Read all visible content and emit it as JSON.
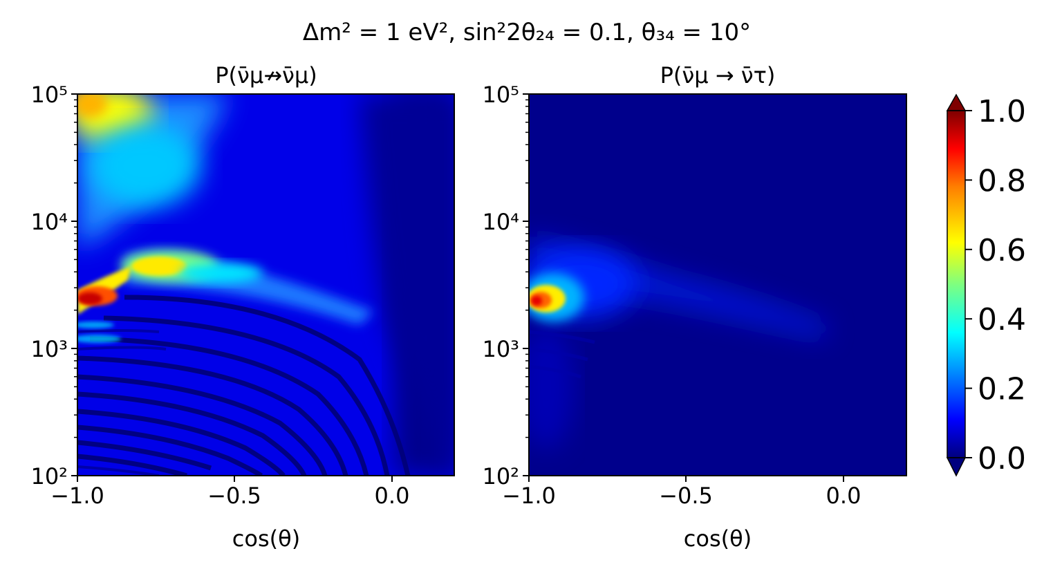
{
  "figure": {
    "suptitle": "Δm² = 1 eV², sin²2θ₂₄ = 0.1, θ₃₄ = 10°"
  },
  "chart_data": [
    {
      "type": "heatmap",
      "title": "P(ν̄μ↛ν̄μ)",
      "xlabel": "cos(θ)",
      "ylabel": "",
      "xlim": [
        -1.0,
        0.2
      ],
      "ylim": [
        100,
        100000
      ],
      "y_scale": "log",
      "x_ticks": [
        "−1.0",
        "−0.5",
        "0.0"
      ],
      "x_tick_values": [
        -1.0,
        -0.5,
        0.0
      ],
      "y_ticks": [
        "10²",
        "10³",
        "10⁴",
        "10⁵"
      ],
      "y_tick_values": [
        100,
        1000,
        10000,
        100000
      ],
      "colormap": "jet",
      "value_range": [
        0.0,
        1.0
      ],
      "features": [
        {
          "region": "peak",
          "cos_theta": -0.98,
          "energy": 2500,
          "value": 0.9
        },
        {
          "region": "band",
          "cos_theta": -0.8,
          "energy": 4500,
          "value": 0.5
        },
        {
          "region": "high-energy corner",
          "cos_theta": -1.0,
          "energy": 100000,
          "value": 0.65
        },
        {
          "region": "near horizon",
          "cos_theta": 0.1,
          "energy": 10000,
          "value": 0.02
        }
      ]
    },
    {
      "type": "heatmap",
      "title": "P(ν̄μ → ν̄τ)",
      "xlabel": "cos(θ)",
      "ylabel": "",
      "xlim": [
        -1.0,
        0.2
      ],
      "ylim": [
        100,
        100000
      ],
      "y_scale": "log",
      "x_ticks": [
        "−1.0",
        "−0.5",
        "0.0"
      ],
      "x_tick_values": [
        -1.0,
        -0.5,
        0.0
      ],
      "y_ticks": [
        "10²",
        "10³",
        "10⁴",
        "10⁵"
      ],
      "y_tick_values": [
        100,
        1000,
        10000,
        100000
      ],
      "colormap": "jet",
      "value_range": [
        0.0,
        1.0
      ],
      "features": [
        {
          "region": "peak",
          "cos_theta": -0.98,
          "energy": 2400,
          "value": 0.8
        },
        {
          "region": "background",
          "cos_theta": -0.5,
          "energy": 1000,
          "value": 0.03
        }
      ]
    }
  ],
  "colorbar": {
    "ticks": [
      "0.0",
      "0.2",
      "0.4",
      "0.6",
      "0.8",
      "1.0"
    ],
    "tick_values": [
      0.0,
      0.2,
      0.4,
      0.6,
      0.8,
      1.0
    ],
    "range": [
      0.0,
      1.0
    ],
    "extend": "both",
    "colormap": "jet",
    "colors": [
      "#00007f",
      "#0000ff",
      "#007fff",
      "#00ffff",
      "#7fff7f",
      "#ffff00",
      "#ff7f00",
      "#ff0000",
      "#7f0000"
    ]
  }
}
